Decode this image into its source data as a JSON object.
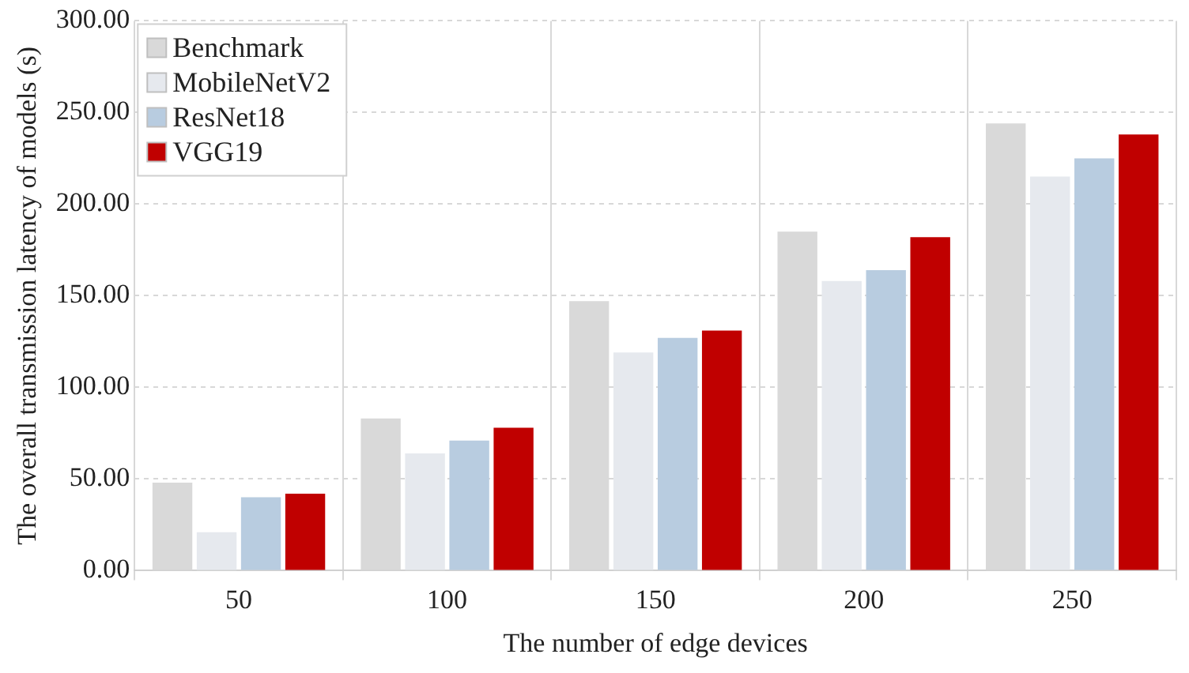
{
  "chart_data": {
    "type": "bar",
    "xlabel": "The number of edge devices",
    "ylabel": "The overall transmission latency of models (s)",
    "categories": [
      "50",
      "100",
      "150",
      "200",
      "250"
    ],
    "series": [
      {
        "name": "Benchmark",
        "color": "#d9d9d9",
        "values": [
          48,
          83,
          147,
          185,
          244
        ]
      },
      {
        "name": "MobileNetV2",
        "color": "#e6e9ee",
        "values": [
          21,
          64,
          119,
          158,
          215
        ]
      },
      {
        "name": "ResNet18",
        "color": "#b8cce0",
        "values": [
          40,
          71,
          127,
          164,
          225
        ]
      },
      {
        "name": "VGG19",
        "color": "#c00000",
        "values": [
          42,
          78,
          131,
          182,
          238
        ]
      }
    ],
    "ylim": [
      0,
      300
    ],
    "yticks": [
      {
        "value": 0,
        "label": "0.00"
      },
      {
        "value": 50,
        "label": "50.00"
      },
      {
        "value": 100,
        "label": "100.00"
      },
      {
        "value": 150,
        "label": "150.00"
      },
      {
        "value": 200,
        "label": "200.00"
      },
      {
        "value": 250,
        "label": "250.00"
      },
      {
        "value": 300,
        "label": "300.00"
      }
    ],
    "grid": true,
    "legend": "top left"
  }
}
